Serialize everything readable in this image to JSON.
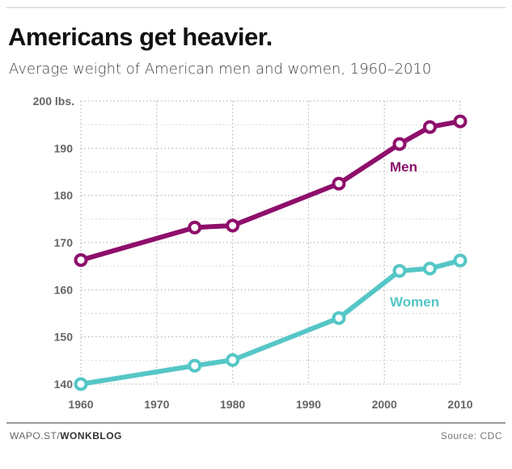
{
  "title": "Americans get heavier.",
  "subtitle": "Average weight of American men and women, 1960–2010",
  "footer": {
    "site": "WAPO.ST/",
    "blog": "WONKBLOG",
    "source": "Source: CDC"
  },
  "chart_data": {
    "type": "line",
    "title": "Americans get heavier.",
    "xlim": [
      1960,
      2010
    ],
    "ylim": [
      140,
      200
    ],
    "xticks": [
      1960,
      1970,
      1980,
      1990,
      2000,
      2010
    ],
    "yticks": [
      {
        "v": 200,
        "label": "200 lbs."
      },
      {
        "v": 190,
        "label": "190"
      },
      {
        "v": 180,
        "label": "180"
      },
      {
        "v": 170,
        "label": "170"
      },
      {
        "v": 160,
        "label": "160"
      },
      {
        "v": 150,
        "label": "150"
      },
      {
        "v": 140,
        "label": "140"
      }
    ],
    "grid": true,
    "x": [
      1960,
      1975,
      1980,
      1994,
      2002,
      2006,
      2010
    ],
    "series": [
      {
        "name": "Men",
        "color": "#8e0f6b",
        "values": [
          166.3,
          173.2,
          173.6,
          182.5,
          190.9,
          194.5,
          195.7
        ]
      },
      {
        "name": "Women",
        "color": "#55c6c6",
        "values": [
          140.0,
          143.9,
          145.1,
          154.0,
          164.0,
          164.5,
          166.2
        ]
      }
    ]
  }
}
